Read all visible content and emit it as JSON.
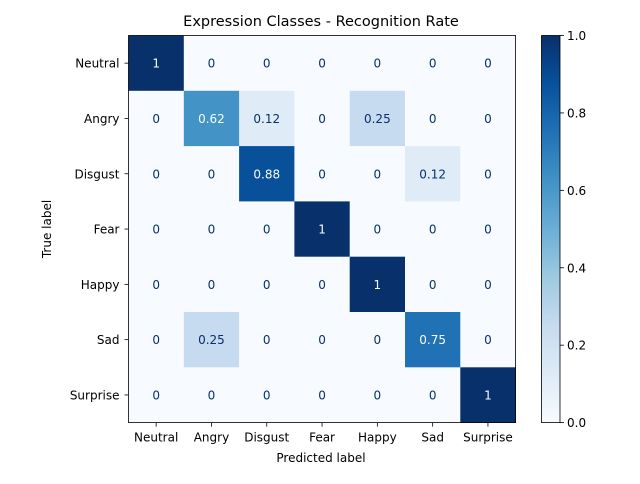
{
  "chart_data": {
    "type": "heatmap",
    "title": "Expression Classes - Recognition Rate",
    "xlabel": "Predicted label",
    "ylabel": "True label",
    "x_categories": [
      "Neutral",
      "Angry",
      "Disgust",
      "Fear",
      "Happy",
      "Sad",
      "Surprise"
    ],
    "y_categories": [
      "Neutral",
      "Angry",
      "Disgust",
      "Fear",
      "Happy",
      "Sad",
      "Surprise"
    ],
    "values": [
      [
        1,
        0,
        0,
        0,
        0,
        0,
        0
      ],
      [
        0,
        0.62,
        0.12,
        0,
        0.25,
        0,
        0
      ],
      [
        0,
        0,
        0.88,
        0,
        0,
        0.12,
        0
      ],
      [
        0,
        0,
        0,
        1,
        0,
        0,
        0
      ],
      [
        0,
        0,
        0,
        0,
        1,
        0,
        0
      ],
      [
        0,
        0.25,
        0,
        0,
        0,
        0.75,
        0
      ],
      [
        0,
        0,
        0,
        0,
        0,
        0,
        1
      ]
    ],
    "value_labels": [
      [
        "1",
        "0",
        "0",
        "0",
        "0",
        "0",
        "0"
      ],
      [
        "0",
        "0.62",
        "0.12",
        "0",
        "0.25",
        "0",
        "0"
      ],
      [
        "0",
        "0",
        "0.88",
        "0",
        "0",
        "0.12",
        "0"
      ],
      [
        "0",
        "0",
        "0",
        "1",
        "0",
        "0",
        "0"
      ],
      [
        "0",
        "0",
        "0",
        "0",
        "1",
        "0",
        "0"
      ],
      [
        "0",
        "0.25",
        "0",
        "0",
        "0",
        "0.75",
        "0"
      ],
      [
        "0",
        "0",
        "0",
        "0",
        "0",
        "0",
        "1"
      ]
    ],
    "colormap": "Blues",
    "colorbar": {
      "range": [
        0,
        1
      ],
      "ticks": [
        0.0,
        0.2,
        0.4,
        0.6,
        0.8,
        1.0
      ],
      "tick_labels": [
        "0.0",
        "0.2",
        "0.4",
        "0.6",
        "0.8",
        "1.0"
      ]
    },
    "grid": false,
    "legend": "colorbar-right"
  },
  "colors": {
    "low": "#f7fbff",
    "high": "#08306b",
    "text_dark": "#08306b",
    "text_light": "#f7fbff"
  }
}
